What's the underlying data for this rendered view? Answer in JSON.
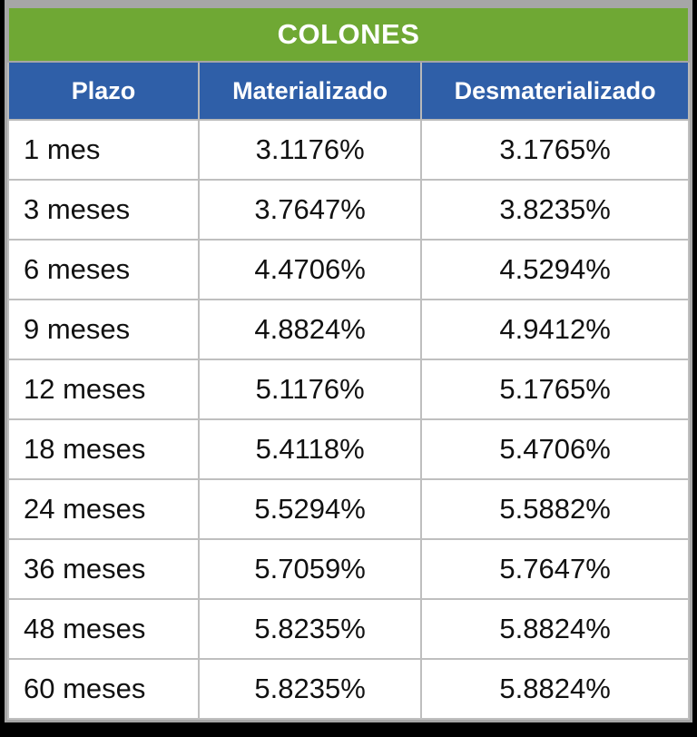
{
  "title": "COLONES",
  "columns": [
    "Plazo",
    "Materializado",
    "Desmaterializado"
  ],
  "rows": [
    {
      "plazo": "1 mes",
      "materializado": "3.1176%",
      "desmaterializado": "3.1765%"
    },
    {
      "plazo": "3 meses",
      "materializado": "3.7647%",
      "desmaterializado": "3.8235%"
    },
    {
      "plazo": "6 meses",
      "materializado": "4.4706%",
      "desmaterializado": "4.5294%"
    },
    {
      "plazo": "9 meses",
      "materializado": "4.8824%",
      "desmaterializado": "4.9412%"
    },
    {
      "plazo": "12 meses",
      "materializado": "5.1176%",
      "desmaterializado": "5.1765%"
    },
    {
      "plazo": "18 meses",
      "materializado": "5.4118%",
      "desmaterializado": "5.4706%"
    },
    {
      "plazo": "24 meses",
      "materializado": "5.5294%",
      "desmaterializado": "5.5882%"
    },
    {
      "plazo": "36 meses",
      "materializado": "5.7059%",
      "desmaterializado": "5.7647%"
    },
    {
      "plazo": "48 meses",
      "materializado": "5.8235%",
      "desmaterializado": "5.8824%"
    },
    {
      "plazo": "60 meses",
      "materializado": "5.8235%",
      "desmaterializado": "5.8824%"
    }
  ],
  "colors": {
    "title_bg": "#6FA834",
    "header_bg": "#2F5FA8",
    "header_text": "#FFFFFF",
    "cell_text": "#111111",
    "cell_border": "#BFBFBF",
    "outer_border": "#A6A6A6",
    "page_background": "#000000"
  },
  "chart_data": {
    "type": "table",
    "title": "COLONES",
    "columns": [
      "Plazo",
      "Materializado",
      "Desmaterializado"
    ],
    "rows": [
      [
        "1 mes",
        "3.1176%",
        "3.1765%"
      ],
      [
        "3 meses",
        "3.7647%",
        "3.8235%"
      ],
      [
        "6 meses",
        "4.4706%",
        "4.5294%"
      ],
      [
        "9 meses",
        "4.8824%",
        "4.9412%"
      ],
      [
        "12 meses",
        "5.1176%",
        "5.1765%"
      ],
      [
        "18 meses",
        "5.4118%",
        "5.4706%"
      ],
      [
        "24 meses",
        "5.5294%",
        "5.5882%"
      ],
      [
        "36 meses",
        "5.7059%",
        "5.7647%"
      ],
      [
        "48 meses",
        "5.8235%",
        "5.8824%"
      ],
      [
        "60 meses",
        "5.8235%",
        "5.8824%"
      ]
    ]
  }
}
